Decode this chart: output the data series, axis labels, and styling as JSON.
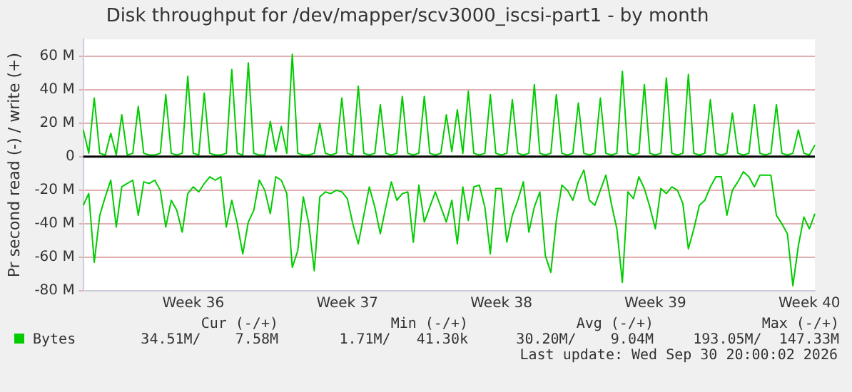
{
  "chart_data": {
    "type": "line",
    "title": "Disk throughput for /dev/mapper/scv3000_iscsi-part1 - by month",
    "ylabel": "Pr second read (-) / write (+)",
    "categories": [
      null,
      null,
      null,
      null,
      null,
      null,
      null,
      null,
      null,
      null,
      null,
      null,
      null,
      null,
      null,
      null,
      null,
      null,
      null,
      null,
      "Week 36",
      null,
      null,
      null,
      null,
      null,
      null,
      null,
      null,
      null,
      null,
      null,
      null,
      null,
      null,
      null,
      null,
      null,
      null,
      null,
      null,
      null,
      null,
      null,
      null,
      null,
      null,
      null,
      "Week 37",
      null,
      null,
      null,
      null,
      null,
      null,
      null,
      null,
      null,
      null,
      null,
      null,
      null,
      null,
      null,
      null,
      null,
      null,
      null,
      null,
      null,
      null,
      null,
      null,
      null,
      null,
      null,
      "Week 38",
      null,
      null,
      null,
      null,
      null,
      null,
      null,
      null,
      null,
      null,
      null,
      null,
      null,
      null,
      null,
      null,
      null,
      null,
      null,
      null,
      null,
      null,
      null,
      null,
      null,
      null,
      null,
      "Week 39",
      null,
      null,
      null,
      null,
      null,
      null,
      null,
      null,
      null,
      null,
      null,
      null,
      null,
      null,
      null,
      null,
      null,
      null,
      null,
      null,
      null,
      null,
      null,
      null,
      null,
      null,
      null,
      "Week 40",
      null
    ],
    "ylim": [
      -80,
      70
    ],
    "yticks": [
      {
        "value": -80,
        "label": "-80 M"
      },
      {
        "value": -60,
        "label": "-60 M"
      },
      {
        "value": -40,
        "label": "-40 M"
      },
      {
        "value": -20,
        "label": "-20 M"
      },
      0,
      {
        "value": 20,
        "label": "20 M"
      },
      {
        "value": 40,
        "label": "40 M"
      },
      {
        "value": 60,
        "label": "60 M"
      }
    ],
    "grid": "y",
    "legend": "bottom",
    "marker": "none",
    "line_style": "solid",
    "ref_lines": [
      {
        "axis": "y",
        "value": 0,
        "color": "#000000"
      }
    ],
    "series": [
      {
        "name": "Bytes",
        "color": "#00cc00",
        "values": [
          16,
          2,
          35,
          2,
          1,
          14,
          1,
          25,
          1,
          2,
          30,
          2,
          1,
          1,
          2,
          37,
          2,
          1,
          2,
          48,
          2,
          1,
          38,
          2,
          1,
          1,
          2,
          52,
          2,
          1,
          56,
          2,
          1,
          1,
          21,
          3,
          18,
          2,
          61,
          2,
          1,
          1,
          2,
          20,
          2,
          1,
          2,
          35,
          2,
          1,
          42,
          2,
          1,
          2,
          31,
          2,
          1,
          2,
          36,
          2,
          1,
          2,
          36,
          2,
          1,
          2,
          25,
          3,
          28,
          2,
          39,
          2,
          1,
          2,
          37,
          2,
          1,
          2,
          34,
          2,
          1,
          2,
          43,
          2,
          1,
          2,
          37,
          2,
          1,
          2,
          32,
          2,
          1,
          2,
          35,
          2,
          1,
          2,
          51,
          2,
          1,
          2,
          43,
          2,
          1,
          2,
          47,
          2,
          1,
          2,
          49,
          2,
          1,
          2,
          34,
          2,
          1,
          2,
          26,
          2,
          1,
          2,
          31,
          2,
          1,
          2,
          31,
          2,
          1,
          2,
          16,
          2,
          1,
          7
        ]
      },
      {
        "color": "#00cc00",
        "values": [
          -29,
          -22,
          -63,
          -35,
          -24,
          -14,
          -42,
          -18,
          -16,
          -14,
          -35,
          -15,
          -16,
          -14,
          -20,
          -42,
          -26,
          -32,
          -45,
          -22,
          -18,
          -21,
          -16,
          -12,
          -14,
          -12,
          -42,
          -26,
          -40,
          -58,
          -39,
          -32,
          -14,
          -20,
          -34,
          -12,
          -14,
          -22,
          -66,
          -56,
          -24,
          -40,
          -68,
          -24,
          -21,
          -22,
          -20,
          -21,
          -25,
          -40,
          -52,
          -35,
          -18,
          -30,
          -46,
          -30,
          -15,
          -26,
          -22,
          -21,
          -51,
          -17,
          -39,
          -30,
          -21,
          -30,
          -39,
          -26,
          -52,
          -18,
          -38,
          -18,
          -17,
          -30,
          -58,
          -19,
          -19,
          -51,
          -35,
          -26,
          -15,
          -45,
          -30,
          -21,
          -59,
          -69,
          -38,
          -17,
          -20,
          -26,
          -15,
          -8,
          -26,
          -29,
          -20,
          -11,
          -28,
          -43,
          -75,
          -21,
          -25,
          -12,
          -19,
          -30,
          -43,
          -19,
          -22,
          -18,
          -20,
          -28,
          -55,
          -43,
          -29,
          -26,
          -18,
          -12,
          -12,
          -35,
          -20,
          -15,
          -9,
          -12,
          -18,
          -11,
          -11,
          -11,
          -35,
          -40,
          -46,
          -77,
          -53,
          -36,
          -43,
          -34
        ]
      }
    ],
    "annotations": [
      "Cur (-/+)",
      "Min (-/+)",
      "Avg (-/+)",
      "Max (-/+)",
      "34.51M/    7.58M",
      "1.71M/   41.30k",
      "30.20M/    9.04M",
      "193.05M/  147.33M",
      "Last update: Wed Sep 30 20:00:02 2026"
    ]
  }
}
